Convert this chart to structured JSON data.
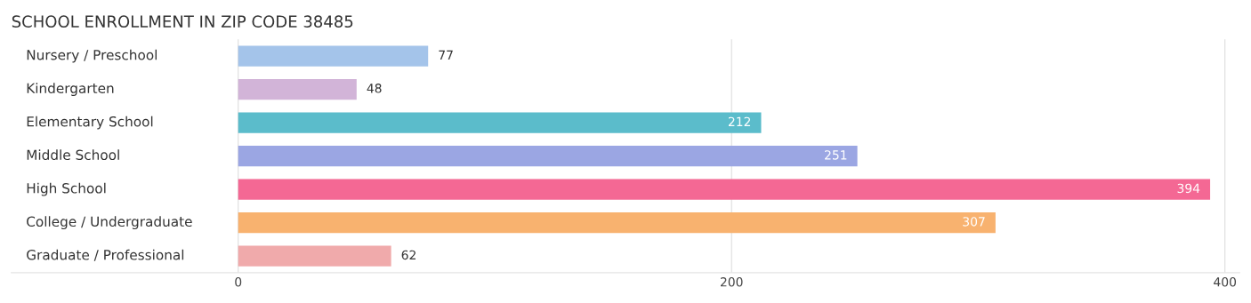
{
  "chart_data": {
    "type": "bar",
    "orientation": "horizontal",
    "title": "SCHOOL ENROLLMENT IN ZIP CODE 38485",
    "categories": [
      "Nursery / Preschool",
      "Kindergarten",
      "Elementary School",
      "Middle School",
      "High School",
      "College / Undergraduate",
      "Graduate / Professional"
    ],
    "values": [
      77,
      48,
      212,
      251,
      394,
      307,
      62
    ],
    "colors": [
      "#a4c4ea",
      "#d2b4d8",
      "#5bbccb",
      "#9ba6e3",
      "#f46894",
      "#f8b26f",
      "#f0aaab"
    ],
    "xlim": [
      -92,
      406
    ],
    "xticks": [
      0,
      200,
      400
    ],
    "grid": "x",
    "data_labels": true,
    "legend": false
  }
}
